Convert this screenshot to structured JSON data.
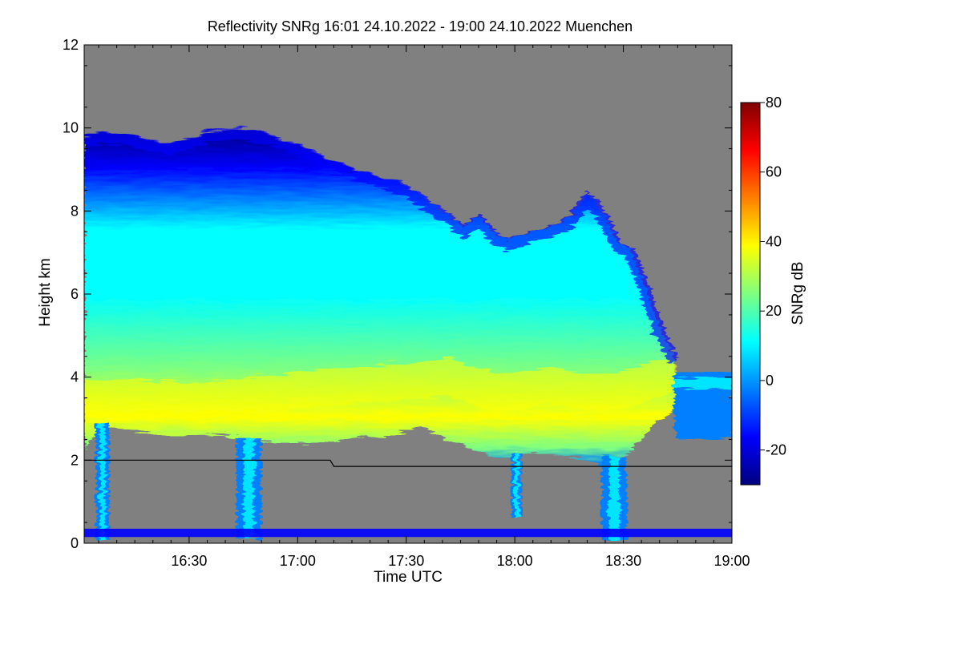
{
  "chart_data": {
    "type": "heatmap",
    "title": "Reflectivity SNRg   16:01 24.10.2022 - 19:00 24.10.2022 Muenchen",
    "xlabel": "Time UTC",
    "ylabel": "Height km",
    "x_range_minutes_utc": [
      961,
      1140
    ],
    "x_ticks": [
      {
        "minute": 990,
        "label": "16:30"
      },
      {
        "minute": 1020,
        "label": "17:00"
      },
      {
        "minute": 1050,
        "label": "17:30"
      },
      {
        "minute": 1080,
        "label": "18:00"
      },
      {
        "minute": 1110,
        "label": "18:30"
      },
      {
        "minute": 1140,
        "label": "19:00"
      }
    ],
    "ylim": [
      0,
      12
    ],
    "y_ticks": [
      0,
      2,
      4,
      6,
      8,
      10,
      12
    ],
    "colorbar": {
      "label": "SNRg dB",
      "range": [
        -30,
        80
      ],
      "ticks": [
        -20,
        0,
        20,
        40,
        60,
        80
      ],
      "colormap": [
        "#00007f",
        "#0000ff",
        "#007fff",
        "#00ffff",
        "#7fff7f",
        "#ffff00",
        "#ff7f00",
        "#ff0000",
        "#7f0000"
      ]
    },
    "no_signal_color": "#808080",
    "echo_top_km": [
      [
        961,
        9.8
      ],
      [
        966,
        9.9
      ],
      [
        975,
        9.8
      ],
      [
        985,
        9.6
      ],
      [
        995,
        9.9
      ],
      [
        1004,
        10.0
      ],
      [
        1010,
        9.9
      ],
      [
        1020,
        9.6
      ],
      [
        1030,
        9.2
      ],
      [
        1040,
        8.9
      ],
      [
        1048,
        8.7
      ],
      [
        1055,
        8.3
      ],
      [
        1062,
        7.9
      ],
      [
        1066,
        7.6
      ],
      [
        1070,
        7.9
      ],
      [
        1074,
        7.5
      ],
      [
        1078,
        7.3
      ],
      [
        1084,
        7.5
      ],
      [
        1090,
        7.6
      ],
      [
        1096,
        7.9
      ],
      [
        1100,
        8.4
      ],
      [
        1104,
        8.0
      ],
      [
        1108,
        7.3
      ],
      [
        1112,
        7.1
      ],
      [
        1116,
        6.2
      ],
      [
        1120,
        5.2
      ],
      [
        1124,
        4.5
      ]
    ],
    "echo_base_km": [
      [
        961,
        2.3
      ],
      [
        966,
        2.8
      ],
      [
        975,
        2.7
      ],
      [
        985,
        2.6
      ],
      [
        995,
        2.6
      ],
      [
        1004,
        2.5
      ],
      [
        1015,
        2.4
      ],
      [
        1025,
        2.4
      ],
      [
        1035,
        2.5
      ],
      [
        1045,
        2.6
      ],
      [
        1055,
        2.8
      ],
      [
        1060,
        2.5
      ],
      [
        1068,
        2.3
      ],
      [
        1075,
        2.0
      ],
      [
        1085,
        2.2
      ],
      [
        1095,
        2.1
      ],
      [
        1104,
        1.9
      ],
      [
        1112,
        2.2
      ],
      [
        1118,
        2.8
      ],
      [
        1124,
        3.2
      ]
    ],
    "peak_layer_km": [
      [
        961,
        3.5
      ],
      [
        975,
        3.5
      ],
      [
        990,
        3.4
      ],
      [
        1005,
        3.5
      ],
      [
        1020,
        3.7
      ],
      [
        1035,
        3.8
      ],
      [
        1050,
        3.9
      ],
      [
        1062,
        4.0
      ],
      [
        1075,
        3.6
      ],
      [
        1090,
        3.8
      ],
      [
        1104,
        3.6
      ],
      [
        1114,
        3.8
      ],
      [
        1120,
        4.0
      ]
    ],
    "secondary_layer": {
      "start_minute": 1124,
      "end_minute": 1140,
      "bottom_km": 2.5,
      "top_km": 4.1
    },
    "fall_streaks": [
      {
        "start_minute": 964,
        "end_minute": 968,
        "bottom_km": 0.1
      },
      {
        "start_minute": 1003,
        "end_minute": 1010,
        "bottom_km": 0.1
      },
      {
        "start_minute": 1079,
        "end_minute": 1082,
        "bottom_km": 0.6
      },
      {
        "start_minute": 1104,
        "end_minute": 1111,
        "bottom_km": 0.1
      }
    ],
    "melting_layer_line_km": [
      [
        961,
        2.0
      ],
      [
        1015,
        2.0
      ],
      [
        1029,
        2.0
      ],
      [
        1030,
        1.85
      ],
      [
        1140,
        1.85
      ]
    ]
  }
}
